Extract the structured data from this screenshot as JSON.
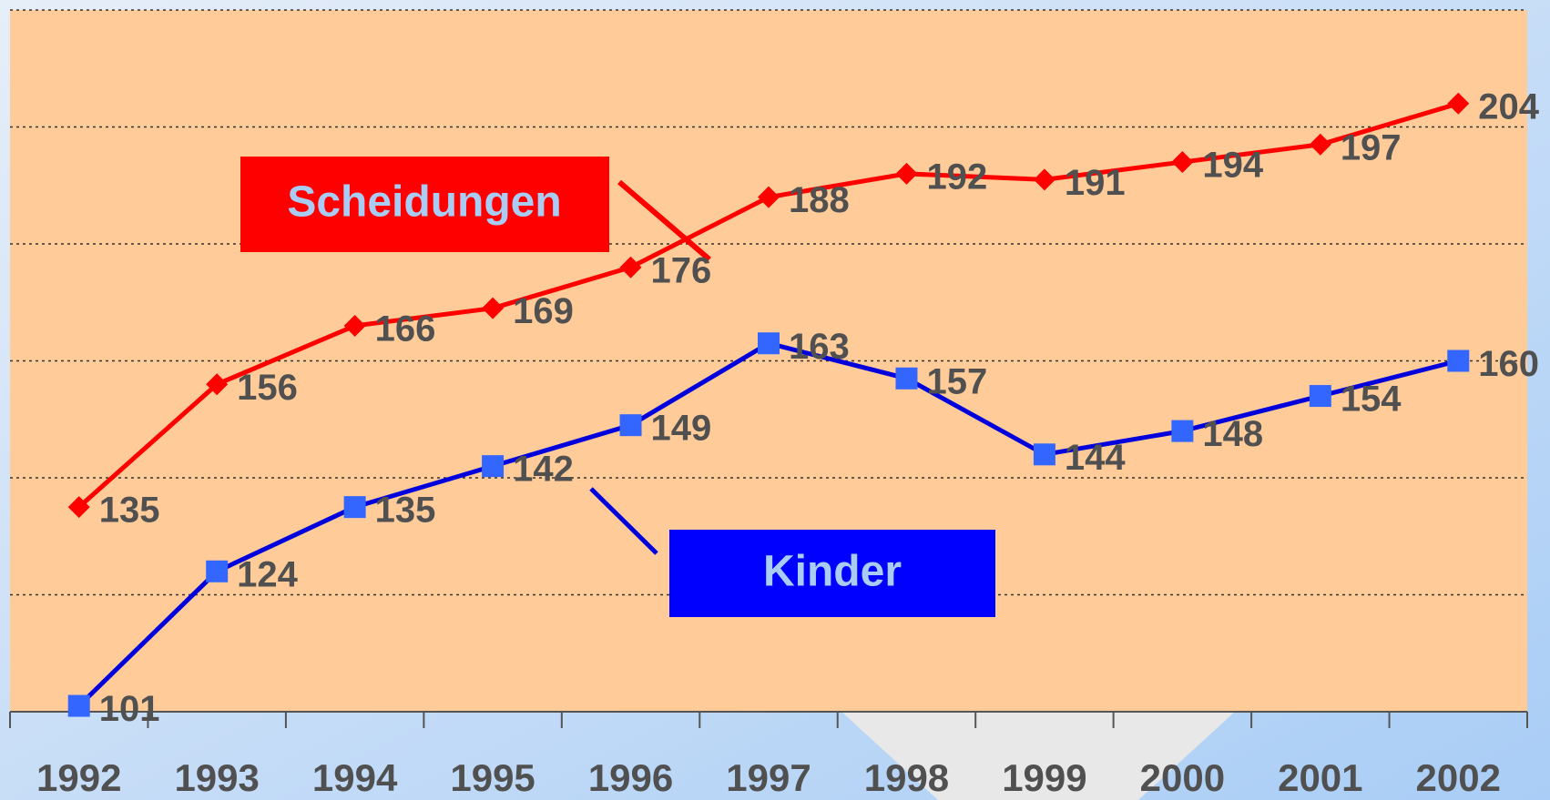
{
  "chart_data": {
    "type": "line",
    "categories": [
      "1992",
      "1993",
      "1994",
      "1995",
      "1996",
      "1997",
      "1998",
      "1999",
      "2000",
      "2001",
      "2002"
    ],
    "series": [
      {
        "name": "Scheidungen",
        "color": "#ff0000",
        "marker": "diamond",
        "values": [
          135,
          156,
          166,
          169,
          176,
          188,
          192,
          191,
          194,
          197,
          204
        ]
      },
      {
        "name": "Kinder",
        "color": "#0000dd",
        "marker": "square",
        "values": [
          101,
          124,
          135,
          142,
          149,
          163,
          157,
          144,
          148,
          154,
          160
        ]
      }
    ],
    "ylim": [
      100,
      220
    ],
    "yticks": [
      100,
      120,
      140,
      160,
      180,
      200,
      220
    ],
    "grid": true
  }
}
